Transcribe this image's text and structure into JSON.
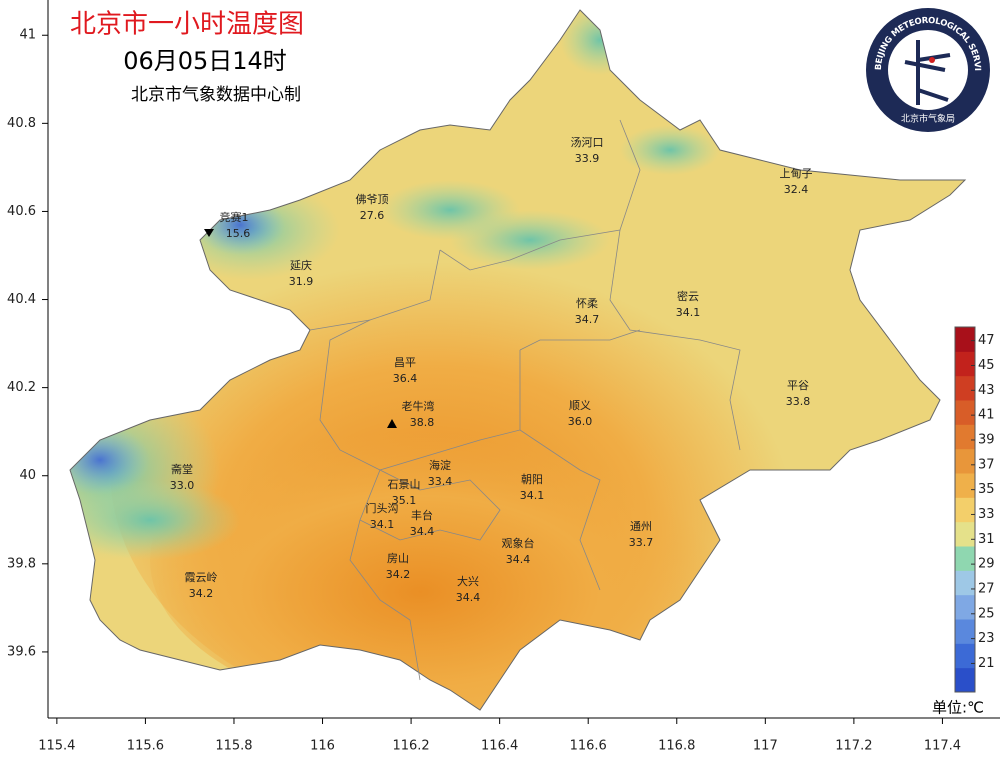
{
  "map": {
    "title": "北京市一小时温度图",
    "time": "06月05日14时",
    "source": "北京市气象数据中心制",
    "logo": {
      "english": "BEIJING METEOROLOGICAL SERVICE",
      "chinese": "北京市气象局"
    },
    "xlim": [
      115.38,
      117.53
    ],
    "ylim": [
      39.45,
      41.08
    ],
    "xticks": [
      115.4,
      115.6,
      115.8,
      116,
      116.2,
      116.4,
      116.6,
      116.8,
      117,
      117.2,
      117.4
    ],
    "yticks": [
      39.6,
      39.8,
      40,
      40.2,
      40.4,
      40.6,
      40.8,
      41
    ],
    "stations": [
      {
        "name": "汤河口",
        "value": "33.9"
      },
      {
        "name": "上甸子",
        "value": "32.4"
      },
      {
        "name": "佛爷顶",
        "value": "27.6"
      },
      {
        "name": "竞赛1",
        "value": "15.6"
      },
      {
        "name": "延庆",
        "value": "31.9"
      },
      {
        "name": "怀柔",
        "value": "34.7"
      },
      {
        "name": "密云",
        "value": "34.1"
      },
      {
        "name": "昌平",
        "value": "36.4"
      },
      {
        "name": "平谷",
        "value": "33.8"
      },
      {
        "name": "老牛湾",
        "value": "38.8"
      },
      {
        "name": "顺义",
        "value": "36.0"
      },
      {
        "name": "海淀",
        "value": "33.4"
      },
      {
        "name": "斋堂",
        "value": "33.0"
      },
      {
        "name": "石景山",
        "value": "35.1"
      },
      {
        "name": "朝阳",
        "value": "34.1"
      },
      {
        "name": "门头沟",
        "value": "34.1"
      },
      {
        "name": "丰台",
        "value": "34.4"
      },
      {
        "name": "通州",
        "value": "33.7"
      },
      {
        "name": "观象台",
        "value": "34.4"
      },
      {
        "name": "房山",
        "value": "34.2"
      },
      {
        "name": "霞云岭",
        "value": "34.2"
      },
      {
        "name": "大兴",
        "value": "34.4"
      }
    ],
    "colorbar": {
      "lim": [
        18.7,
        48.1
      ],
      "ticks": [
        21,
        23,
        25,
        27,
        29,
        31,
        33,
        35,
        37,
        39,
        41,
        43,
        45,
        47
      ],
      "colors": [
        "#2a4fc9",
        "#3c6ad6",
        "#5a88dd",
        "#7fa8e4",
        "#9ec8e6",
        "#8fd7b0",
        "#e5e18a",
        "#f3cf6a",
        "#efb04a",
        "#e8963a",
        "#e17a2f",
        "#d85d28",
        "#cf3e22",
        "#c2221c",
        "#a8101a"
      ]
    },
    "unit": "单位:℃"
  }
}
